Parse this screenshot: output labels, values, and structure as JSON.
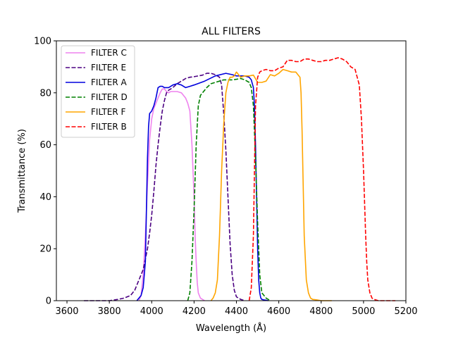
{
  "chart_data": {
    "type": "line",
    "title": "ALL FILTERS",
    "xlabel": "Wavelength (Å)",
    "ylabel": "Transmittance (%)",
    "xlim": [
      3550,
      5200
    ],
    "ylim": [
      0,
      100
    ],
    "xticks": [
      3600,
      3800,
      4000,
      4200,
      4400,
      4600,
      4800,
      5000,
      5200
    ],
    "yticks": [
      0,
      20,
      40,
      60,
      80,
      100
    ],
    "grid": false,
    "legend_position": "top-left",
    "series": [
      {
        "name": "FILTER C",
        "color": "#ee82ee",
        "dash": "solid",
        "x": [
          3940,
          3950,
          3960,
          3970,
          3980,
          3990,
          4000,
          4010,
          4020,
          4030,
          4040,
          4050,
          4060,
          4070,
          4080,
          4090,
          4100,
          4120,
          4140,
          4160,
          4170,
          4180,
          4190,
          4200,
          4205,
          4210,
          4215,
          4220,
          4230,
          4240,
          4250
        ],
        "y": [
          0,
          2,
          10,
          25,
          45,
          62,
          70,
          74,
          76,
          78,
          80,
          81.5,
          81.5,
          80.5,
          80,
          80.5,
          80.5,
          80.5,
          80,
          78,
          76,
          73,
          60,
          40,
          25,
          15,
          7,
          3,
          1,
          0.5,
          0
        ]
      },
      {
        "name": "FILTER E",
        "color": "#4b0082",
        "dash": "dashed",
        "x": [
          3680,
          3720,
          3760,
          3800,
          3840,
          3870,
          3900,
          3920,
          3940,
          3960,
          3970,
          3980,
          3990,
          4000,
          4010,
          4020,
          4030,
          4040,
          4050,
          4060,
          4070,
          4080,
          4090,
          4100,
          4120,
          4140,
          4160,
          4180,
          4200,
          4220,
          4240,
          4260,
          4280,
          4300,
          4320,
          4330,
          4340,
          4350,
          4360,
          4370,
          4380,
          4390,
          4400,
          4420,
          4440
        ],
        "y": [
          0,
          0,
          0,
          0,
          0.5,
          1,
          2,
          4,
          8,
          12,
          16,
          20,
          26,
          33,
          42,
          52,
          60,
          67,
          73,
          77,
          80,
          81,
          81.5,
          82,
          83.5,
          84.5,
          85.5,
          86,
          86.2,
          86.5,
          86.8,
          87.5,
          87.5,
          87,
          86,
          83,
          72,
          58,
          40,
          22,
          10,
          4,
          1.5,
          0.5,
          0
        ]
      },
      {
        "name": "FILTER A",
        "color": "#0000dd",
        "dash": "solid",
        "x": [
          3930,
          3950,
          3960,
          3970,
          3975,
          3980,
          3985,
          3990,
          4000,
          4010,
          4020,
          4030,
          4040,
          4050,
          4060,
          4080,
          4100,
          4120,
          4140,
          4160,
          4180,
          4200,
          4250,
          4300,
          4350,
          4380,
          4400,
          4440,
          4460,
          4470,
          4480,
          4485,
          4490,
          4495,
          4500,
          4505,
          4510,
          4515,
          4520,
          4530,
          4540,
          4550
        ],
        "y": [
          0,
          2,
          5,
          15,
          35,
          55,
          67,
          72,
          73,
          75,
          78,
          82,
          82.5,
          82.5,
          82,
          82,
          83,
          83.5,
          83,
          82,
          82.5,
          83,
          84.5,
          86.5,
          87.5,
          87,
          86.5,
          86.5,
          86,
          85,
          82,
          75,
          60,
          40,
          20,
          8,
          3,
          1,
          0.5,
          0.3,
          0.2,
          0
        ]
      },
      {
        "name": "FILTER D",
        "color": "#008000",
        "dash": "dashed",
        "x": [
          4170,
          4180,
          4190,
          4200,
          4210,
          4220,
          4230,
          4240,
          4260,
          4280,
          4300,
          4320,
          4340,
          4360,
          4380,
          4400,
          4420,
          4440,
          4460,
          4470,
          4480,
          4490,
          4500,
          4510,
          4520,
          4540,
          4560
        ],
        "y": [
          0,
          3,
          15,
          35,
          60,
          75,
          79,
          80,
          82,
          83.5,
          84,
          84.5,
          85,
          85,
          85,
          85.2,
          85.5,
          85,
          84,
          82,
          75,
          55,
          30,
          10,
          3,
          1,
          0
        ]
      },
      {
        "name": "FILTER F",
        "color": "#ffa500",
        "dash": "solid",
        "x": [
          4280,
          4290,
          4300,
          4310,
          4320,
          4330,
          4340,
          4350,
          4360,
          4370,
          4380,
          4390,
          4400,
          4420,
          4440,
          4460,
          4480,
          4500,
          4520,
          4540,
          4560,
          4580,
          4600,
          4620,
          4640,
          4660,
          4680,
          4700,
          4705,
          4710,
          4715,
          4720,
          4730,
          4740,
          4750,
          4760,
          4780,
          4800,
          4850
        ],
        "y": [
          0,
          1,
          3,
          8,
          25,
          50,
          68,
          80,
          84,
          86,
          86,
          86.5,
          88,
          86,
          86.5,
          86.5,
          86.8,
          84,
          84,
          84.5,
          87,
          86.5,
          87.5,
          89,
          88.5,
          88,
          88,
          86,
          80,
          65,
          45,
          25,
          8,
          3,
          1,
          0.5,
          0.3,
          0,
          0
        ]
      },
      {
        "name": "FILTER B",
        "color": "#ff0000",
        "dash": "dashed",
        "x": [
          4460,
          4470,
          4480,
          4485,
          4490,
          4500,
          4510,
          4520,
          4540,
          4560,
          4580,
          4600,
          4620,
          4640,
          4660,
          4680,
          4700,
          4720,
          4740,
          4760,
          4780,
          4800,
          4820,
          4840,
          4860,
          4880,
          4900,
          4920,
          4940,
          4960,
          4980,
          4990,
          5000,
          5010,
          5015,
          5020,
          5030,
          5040,
          5050,
          5070,
          5100,
          5150
        ],
        "y": [
          0,
          5,
          25,
          50,
          75,
          86,
          88,
          88.5,
          89,
          88.5,
          88.5,
          89.5,
          90,
          92.5,
          92.5,
          92,
          92,
          93,
          93,
          92.5,
          92,
          92,
          92.5,
          92.5,
          93,
          93.5,
          93,
          92,
          90,
          89,
          83,
          70,
          50,
          25,
          15,
          8,
          3,
          1,
          0.5,
          0,
          0,
          0
        ]
      }
    ]
  }
}
